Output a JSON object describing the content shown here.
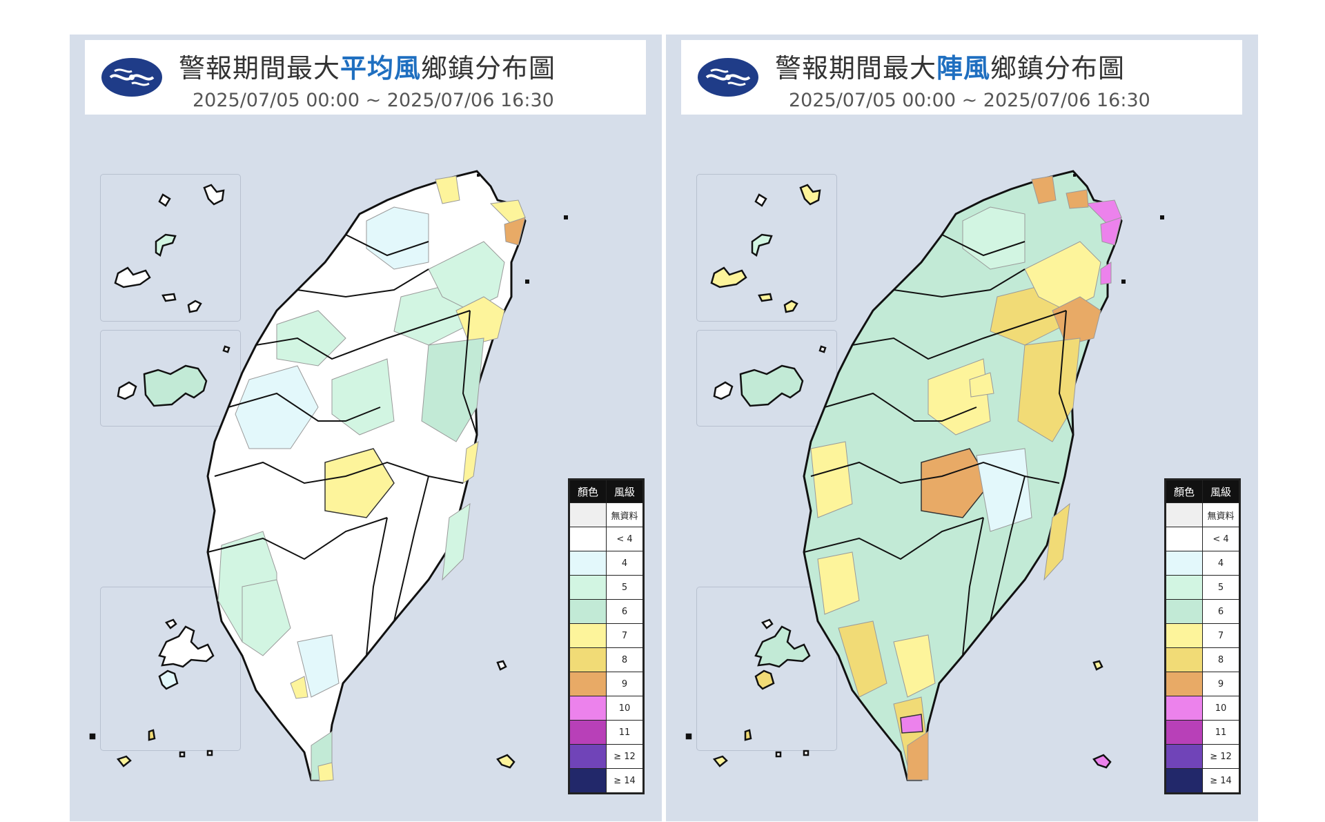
{
  "panels": [
    {
      "title_pre": "警報期間最大",
      "title_highlight": "平均風",
      "title_post": "鄉鎮分布圖",
      "date_range": "2025/07/05 00:00 ~ 2025/07/06 16:30"
    },
    {
      "title_pre": "警報期間最大",
      "title_highlight": "陣風",
      "title_post": "鄉鎮分布圖",
      "date_range": "2025/07/05 00:00 ~ 2025/07/06 16:30"
    }
  ],
  "legend": {
    "header_color": "顏色",
    "header_level": "風級",
    "rows": [
      {
        "label": "無資料",
        "color": "#efefef"
      },
      {
        "label": "< 4",
        "color": "#ffffff"
      },
      {
        "label": "4",
        "color": "#e3f8fb"
      },
      {
        "label": "5",
        "color": "#d2f5e2"
      },
      {
        "label": "6",
        "color": "#c2ead6"
      },
      {
        "label": "7",
        "color": "#fdf49b"
      },
      {
        "label": "8",
        "color": "#f1db76"
      },
      {
        "label": "9",
        "color": "#e8aa66"
      },
      {
        "label": "10",
        "color": "#ec82ec"
      },
      {
        "label": "11",
        "color": "#b840b8"
      },
      {
        "label": "≥ 12",
        "color": "#7044b8"
      },
      {
        "label": "≥ 14",
        "color": "#22286a"
      }
    ]
  },
  "colors": {
    "panel_bg": "#d6deea",
    "title_highlight": "#1f6fc0",
    "logo": "#1f3c88"
  }
}
